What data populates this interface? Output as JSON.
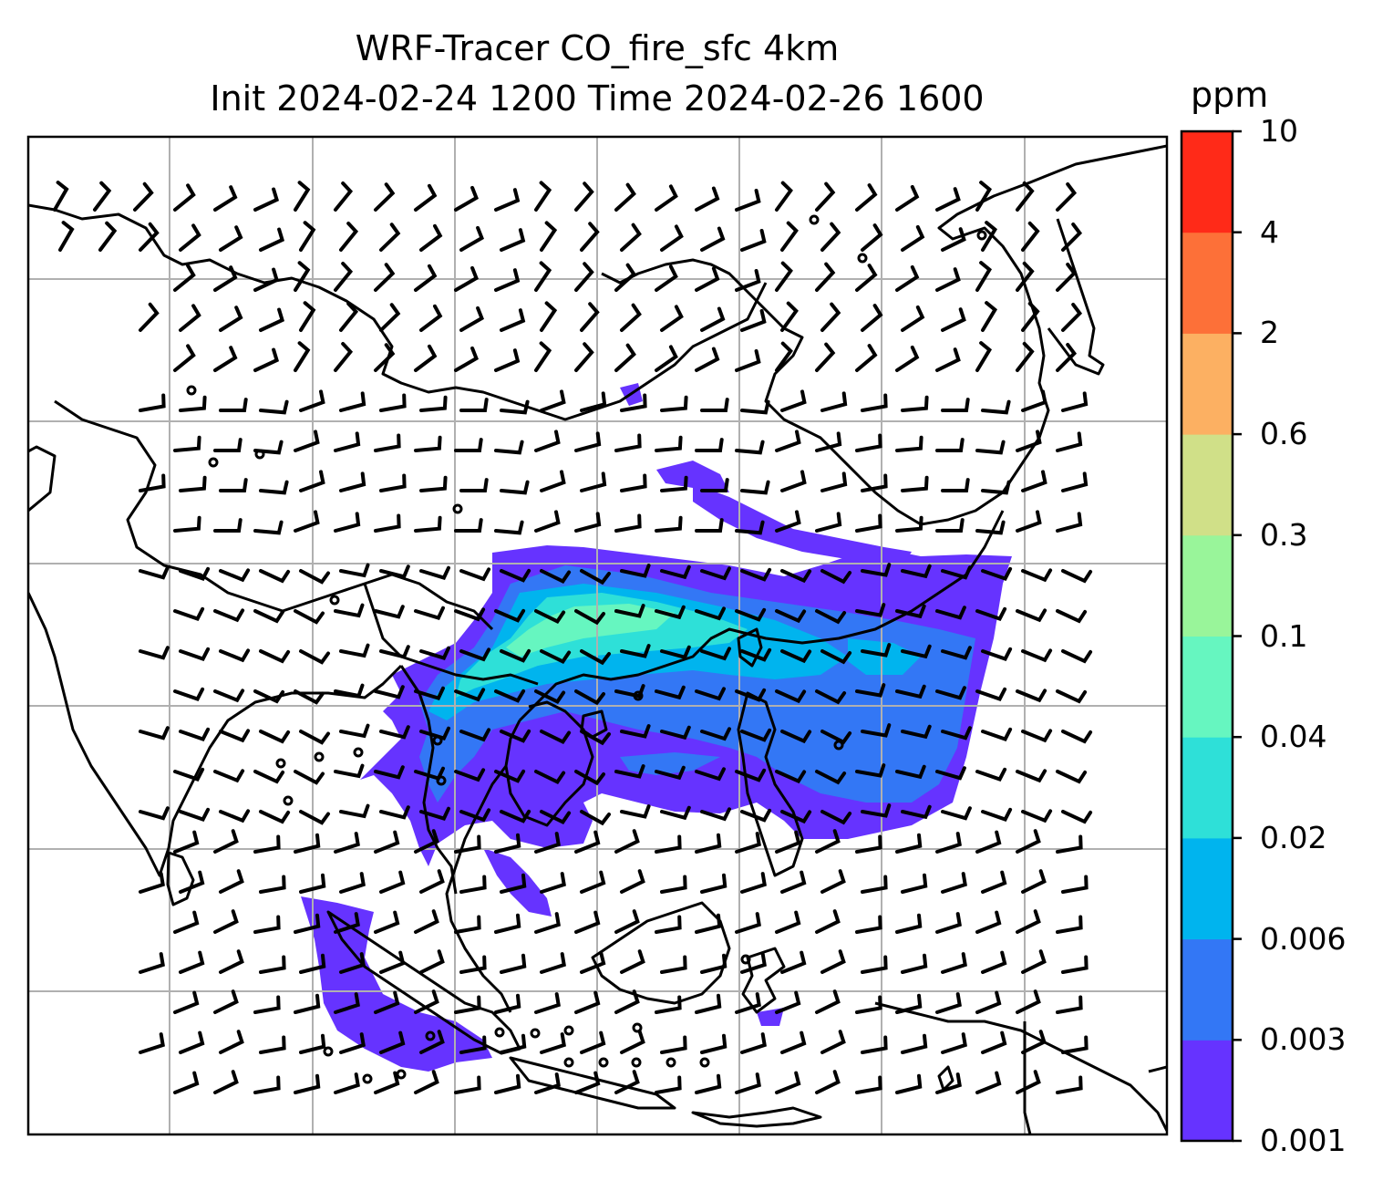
{
  "title": {
    "line1": "WRF-Tracer CO_fire_sfc 4km",
    "line2": "Init 2024-02-24 1200 Time 2024-02-26 1600"
  },
  "colorbar": {
    "unit": "ppm",
    "levels": [
      "0.001",
      "0.003",
      "0.006",
      "0.02",
      "0.04",
      "0.1",
      "0.3",
      "0.6",
      "2",
      "4",
      "10"
    ],
    "colors": [
      "#6633ff",
      "#3377f5",
      "#00b4ee",
      "#2ee0d8",
      "#66f6c0",
      "#99f59a",
      "#d0e088",
      "#fcb062",
      "#fd7038",
      "#ff2a18"
    ]
  },
  "map": {
    "grid": "on",
    "projection_domain": "South and Southeast Asia",
    "features": [
      "coastlines",
      "country borders",
      "wind barbs",
      "CO fire tracer concentration"
    ],
    "colors": {
      "coast": "#000000",
      "grid": "#b0b0b0",
      "ocean": "#ffffff"
    }
  }
}
